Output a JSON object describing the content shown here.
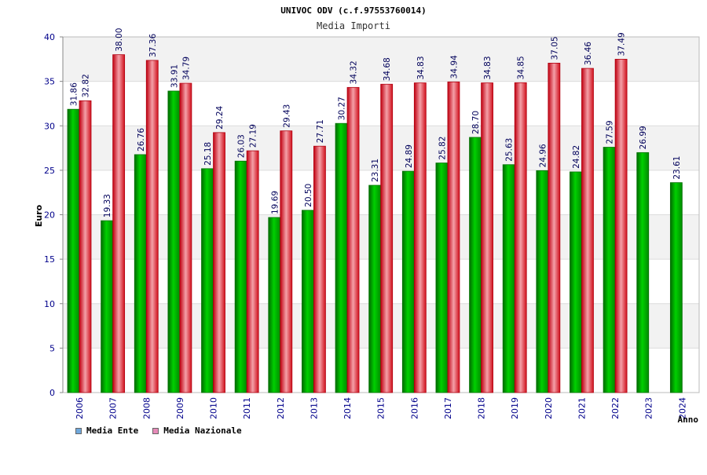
{
  "chart_data": {
    "type": "bar",
    "title": "UNIVOC ODV (c.f.97553760014)",
    "subtitle": "Media Importi",
    "xlabel": "Anno",
    "ylabel": "Euro",
    "ylim": [
      0,
      40
    ],
    "yticks": [
      "0",
      "5",
      "10",
      "15",
      "20",
      "25",
      "30",
      "35",
      "40"
    ],
    "categories": [
      "2006",
      "2007",
      "2008",
      "2009",
      "2010",
      "2011",
      "2012",
      "2013",
      "2014",
      "2015",
      "2016",
      "2017",
      "2018",
      "2019",
      "2020",
      "2021",
      "2022",
      "2023",
      "2024"
    ],
    "series": [
      {
        "name": "Media Ente",
        "color": "#00b400",
        "values": [
          31.86,
          19.33,
          26.76,
          33.91,
          25.18,
          26.03,
          19.69,
          20.5,
          30.27,
          23.31,
          24.89,
          25.82,
          28.7,
          25.63,
          24.96,
          24.82,
          27.59,
          26.99,
          23.61
        ],
        "labels": [
          "31.86",
          "19.33",
          "26.76",
          "33.91",
          "25.18",
          "26.03",
          "19.69",
          "20.50",
          "30.27",
          "23.31",
          "24.89",
          "25.82",
          "28.70",
          "25.63",
          "24.96",
          "24.82",
          "27.59",
          "26.99",
          "23.61"
        ]
      },
      {
        "name": "Media Nazionale",
        "color": "#e8202a",
        "values": [
          32.82,
          38.0,
          37.36,
          34.79,
          29.24,
          27.19,
          29.43,
          27.71,
          34.32,
          34.68,
          34.83,
          34.94,
          34.83,
          34.85,
          37.05,
          36.46,
          37.49,
          null,
          null
        ],
        "labels": [
          "32.82",
          "38.00",
          "37.36",
          "34.79",
          "29.24",
          "27.19",
          "29.43",
          "27.71",
          "34.32",
          "34.68",
          "34.83",
          "34.94",
          "34.83",
          "34.85",
          "37.05",
          "36.46",
          "37.49",
          null,
          null
        ]
      }
    ],
    "grid": true,
    "legend": {
      "position": "bottom-left",
      "items": [
        {
          "label": "Media Ente",
          "color": "#6fa8dc"
        },
        {
          "label": "Media Nazionale",
          "color": "#e68ab8"
        }
      ]
    }
  }
}
